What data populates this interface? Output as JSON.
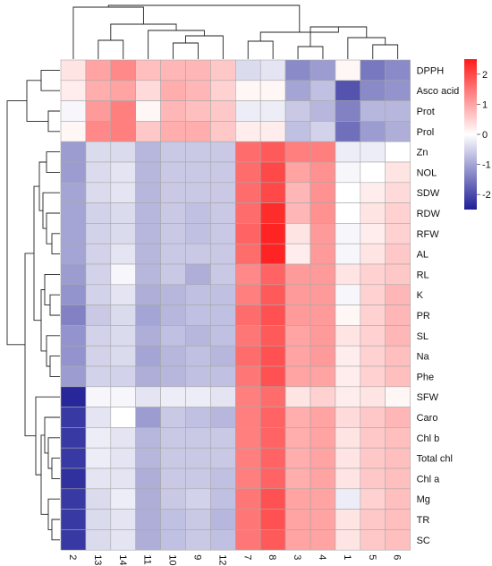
{
  "chart_data": {
    "type": "heatmap",
    "title": "",
    "rows": [
      "DPPH",
      "Asco acid",
      "Prot",
      "Prol",
      "Zn",
      "NOL",
      "SDW",
      "RDW",
      "RFW",
      "AL",
      "RL",
      "K",
      "PR",
      "SL",
      "Na",
      "Phe",
      "SFW",
      "Caro",
      "Chl b",
      "Total chl",
      "Chl a",
      "Mg",
      "TR",
      "SC"
    ],
    "columns": [
      "2",
      "13",
      "14",
      "11",
      "10",
      "9",
      "12",
      "7",
      "8",
      "3",
      "4",
      "1",
      "5",
      "6"
    ],
    "values": [
      [
        0.3,
        1.0,
        1.3,
        0.7,
        0.8,
        0.8,
        0.6,
        -0.4,
        -0.3,
        -1.3,
        -1.1,
        0.1,
        -1.5,
        -1.3
      ],
      [
        0.2,
        0.9,
        1.0,
        0.4,
        0.9,
        0.8,
        0.5,
        0.1,
        0.1,
        -1.0,
        -0.7,
        -1.9,
        -1.3,
        -1.2
      ],
      [
        -0.1,
        1.1,
        1.4,
        0.1,
        0.8,
        0.7,
        0.6,
        -0.2,
        -0.2,
        -0.6,
        -0.8,
        -1.4,
        -0.8,
        -0.8
      ],
      [
        0.1,
        1.3,
        1.4,
        0.6,
        0.9,
        0.9,
        0.6,
        0.2,
        0.2,
        -0.7,
        -0.5,
        -1.6,
        -1.1,
        -0.9
      ],
      [
        -1.1,
        -0.4,
        -0.4,
        -0.8,
        -0.6,
        -0.6,
        -0.6,
        1.6,
        1.8,
        1.4,
        1.4,
        -0.2,
        -0.2,
        0.0
      ],
      [
        -1.1,
        -0.4,
        -0.3,
        -0.8,
        -0.6,
        -0.6,
        -0.6,
        1.6,
        2.0,
        1.0,
        1.2,
        -0.1,
        0.0,
        0.3
      ],
      [
        -1.0,
        -0.4,
        -0.3,
        -0.8,
        -0.6,
        -0.6,
        -0.6,
        1.6,
        2.0,
        0.8,
        1.2,
        0.0,
        0.2,
        0.4
      ],
      [
        -1.0,
        -0.5,
        -0.4,
        -0.8,
        -0.6,
        -0.7,
        -0.6,
        1.6,
        2.3,
        0.8,
        1.2,
        0.0,
        0.3,
        0.5
      ],
      [
        -1.0,
        -0.5,
        -0.4,
        -0.8,
        -0.6,
        -0.7,
        -0.6,
        1.7,
        2.4,
        0.3,
        1.1,
        -0.1,
        0.2,
        0.5
      ],
      [
        -1.0,
        -0.5,
        -0.3,
        -0.8,
        -0.6,
        -0.6,
        -0.6,
        1.6,
        2.4,
        0.2,
        1.1,
        -0.1,
        0.3,
        0.6
      ],
      [
        -1.1,
        -0.5,
        -0.1,
        -0.8,
        -0.6,
        -0.9,
        -0.6,
        1.3,
        1.7,
        1.1,
        1.1,
        0.3,
        0.5,
        0.6
      ],
      [
        -1.2,
        -0.5,
        -0.3,
        -0.9,
        -0.8,
        -0.7,
        -0.7,
        1.4,
        1.8,
        1.1,
        1.1,
        -0.1,
        0.5,
        0.8
      ],
      [
        -1.4,
        -0.6,
        -0.4,
        -1.0,
        -0.8,
        -0.7,
        -0.7,
        1.6,
        1.9,
        1.1,
        1.1,
        0.1,
        0.5,
        0.8
      ],
      [
        -1.2,
        -0.5,
        -0.4,
        -0.9,
        -0.7,
        -0.8,
        -0.7,
        1.5,
        1.8,
        1.0,
        1.1,
        0.3,
        0.5,
        0.8
      ],
      [
        -1.2,
        -0.5,
        -0.4,
        -1.0,
        -0.8,
        -0.7,
        -0.8,
        1.6,
        1.9,
        1.0,
        1.1,
        0.2,
        0.5,
        0.7
      ],
      [
        -1.1,
        -0.5,
        -0.5,
        -0.9,
        -0.8,
        -0.7,
        -0.7,
        1.5,
        1.9,
        1.0,
        1.0,
        0.2,
        0.5,
        0.7
      ],
      [
        -2.4,
        -0.1,
        -0.1,
        -0.3,
        -0.2,
        -0.2,
        -0.3,
        1.4,
        1.6,
        0.3,
        0.5,
        0.2,
        0.3,
        0.1
      ],
      [
        -2.2,
        -0.3,
        0.0,
        -1.1,
        -0.6,
        -0.7,
        -0.8,
        1.4,
        1.7,
        0.9,
        1.0,
        0.4,
        0.6,
        0.8
      ],
      [
        -2.2,
        -0.2,
        -0.3,
        -0.8,
        -0.6,
        -0.6,
        -0.6,
        1.4,
        1.7,
        0.9,
        1.0,
        0.3,
        0.6,
        0.7
      ],
      [
        -2.2,
        -0.2,
        -0.3,
        -0.8,
        -0.6,
        -0.6,
        -0.6,
        1.4,
        1.7,
        0.9,
        1.0,
        0.3,
        0.6,
        0.7
      ],
      [
        -2.3,
        -0.3,
        -0.3,
        -0.9,
        -0.6,
        -0.6,
        -0.7,
        1.4,
        1.7,
        0.9,
        1.0,
        0.3,
        0.6,
        0.7
      ],
      [
        -2.2,
        -0.4,
        -0.2,
        -0.9,
        -0.6,
        -0.5,
        -0.7,
        1.5,
        1.9,
        1.0,
        1.0,
        -0.2,
        0.5,
        0.7
      ],
      [
        -2.2,
        -0.4,
        -0.3,
        -0.9,
        -0.7,
        -0.6,
        -0.8,
        1.5,
        1.9,
        1.0,
        1.0,
        0.3,
        0.6,
        0.7
      ],
      [
        -2.2,
        -0.4,
        -0.3,
        -0.9,
        -0.7,
        -0.6,
        -0.7,
        1.5,
        1.8,
        1.0,
        1.0,
        0.3,
        0.6,
        0.7
      ]
    ],
    "color_scale": {
      "min": -2.5,
      "max": 2.5,
      "stops": [
        "#1e1e96",
        "#ffffff",
        "#ff1a1a"
      ],
      "ticks": [
        -2,
        -1,
        0,
        1,
        2
      ],
      "tick_labels": [
        "-2",
        "-1",
        "0",
        "1",
        "2"
      ]
    },
    "grid_color": "#a8a8a8",
    "row_dendrogram": "left",
    "column_dendrogram": "top",
    "legend": "colorbar right"
  }
}
